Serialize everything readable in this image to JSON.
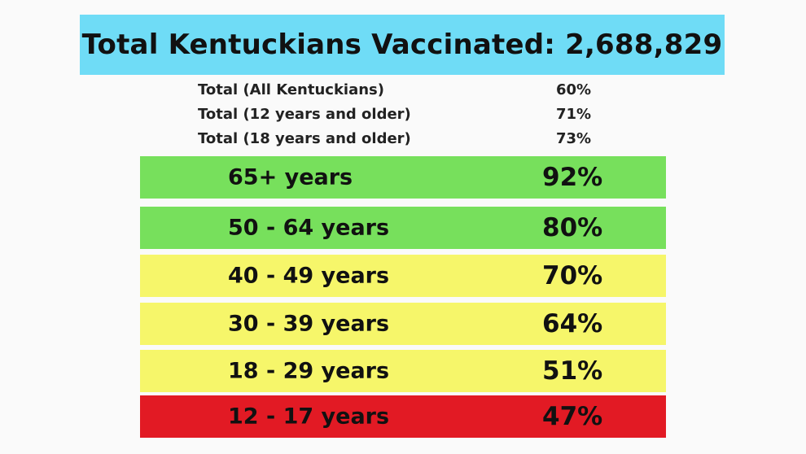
{
  "header": {
    "title": "Total Kentuckians Vaccinated: 2,688,829",
    "background": "#6fdcf6"
  },
  "totals": [
    {
      "label": "Total (All Kentuckians)",
      "value": "60%"
    },
    {
      "label": "Total (12 years and older)",
      "value": "71%"
    },
    {
      "label": "Total (18 years and older)",
      "value": "73%"
    }
  ],
  "age_groups": [
    {
      "label": "65+ years",
      "value": "92%",
      "color": "#77e05c"
    },
    {
      "label": "50 - 64 years",
      "value": "80%",
      "color": "#77e05c"
    },
    {
      "label": "40 - 49 years",
      "value": "70%",
      "color": "#f6f66a"
    },
    {
      "label": "30 - 39 years",
      "value": "64%",
      "color": "#f6f66a"
    },
    {
      "label": "18 - 29 years",
      "value": "51%",
      "color": "#f6f66a"
    },
    {
      "label": "12 - 17 years",
      "value": "47%",
      "color": "#e21a24"
    }
  ]
}
